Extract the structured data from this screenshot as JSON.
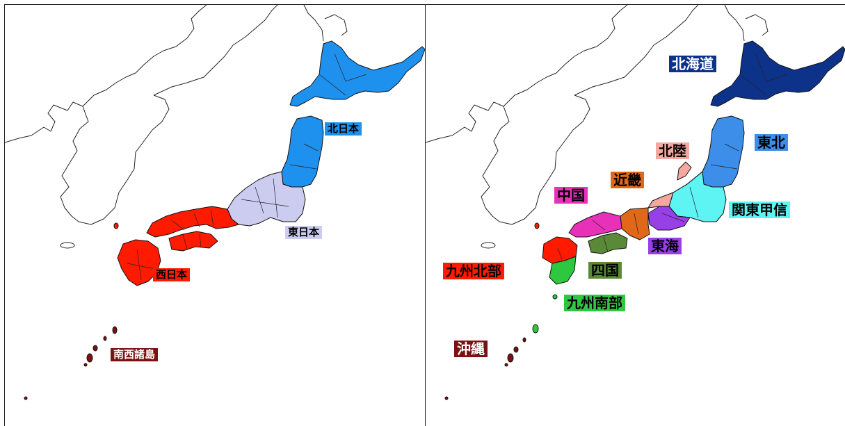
{
  "left_map": {
    "regions": [
      {
        "id": "kita-nihon",
        "label": "北日本",
        "color": "#1e90ee",
        "text_color": "#000000"
      },
      {
        "id": "higashi-nihon",
        "label": "東日本",
        "color": "#ccccf0",
        "text_color": "#000000"
      },
      {
        "id": "nishi-nihon",
        "label": "西日本",
        "color": "#ff1a00",
        "text_color": "#000000"
      },
      {
        "id": "nansei-shoto",
        "label": "南西諸島",
        "color": "#7a1212",
        "text_color": "#ffffff"
      }
    ]
  },
  "right_map": {
    "regions": [
      {
        "id": "hokkaido",
        "label": "北海道",
        "color": "#0d3289",
        "text_color": "#ffffff"
      },
      {
        "id": "tohoku",
        "label": "東北",
        "color": "#3c8ee8",
        "text_color": "#000000"
      },
      {
        "id": "hokuriku",
        "label": "北陸",
        "color": "#f4a8a0",
        "text_color": "#000000"
      },
      {
        "id": "kinki",
        "label": "近畿",
        "color": "#e06818",
        "text_color": "#000000"
      },
      {
        "id": "chugoku",
        "label": "中国",
        "color": "#e830b8",
        "text_color": "#000000"
      },
      {
        "id": "kanto-koshin",
        "label": "関東甲信",
        "color": "#5ef4f4",
        "text_color": "#000000"
      },
      {
        "id": "tokai",
        "label": "東海",
        "color": "#9840e8",
        "text_color": "#000000"
      },
      {
        "id": "shikoku",
        "label": "四国",
        "color": "#5a8a38",
        "text_color": "#000000"
      },
      {
        "id": "kyushu-hokubu",
        "label": "九州北部",
        "color": "#ff1a00",
        "text_color": "#000000"
      },
      {
        "id": "kyushu-nanbu",
        "label": "九州南部",
        "color": "#2ec840",
        "text_color": "#000000"
      },
      {
        "id": "okinawa",
        "label": "沖縄",
        "color": "#7a1212",
        "text_color": "#ffffff"
      }
    ]
  }
}
